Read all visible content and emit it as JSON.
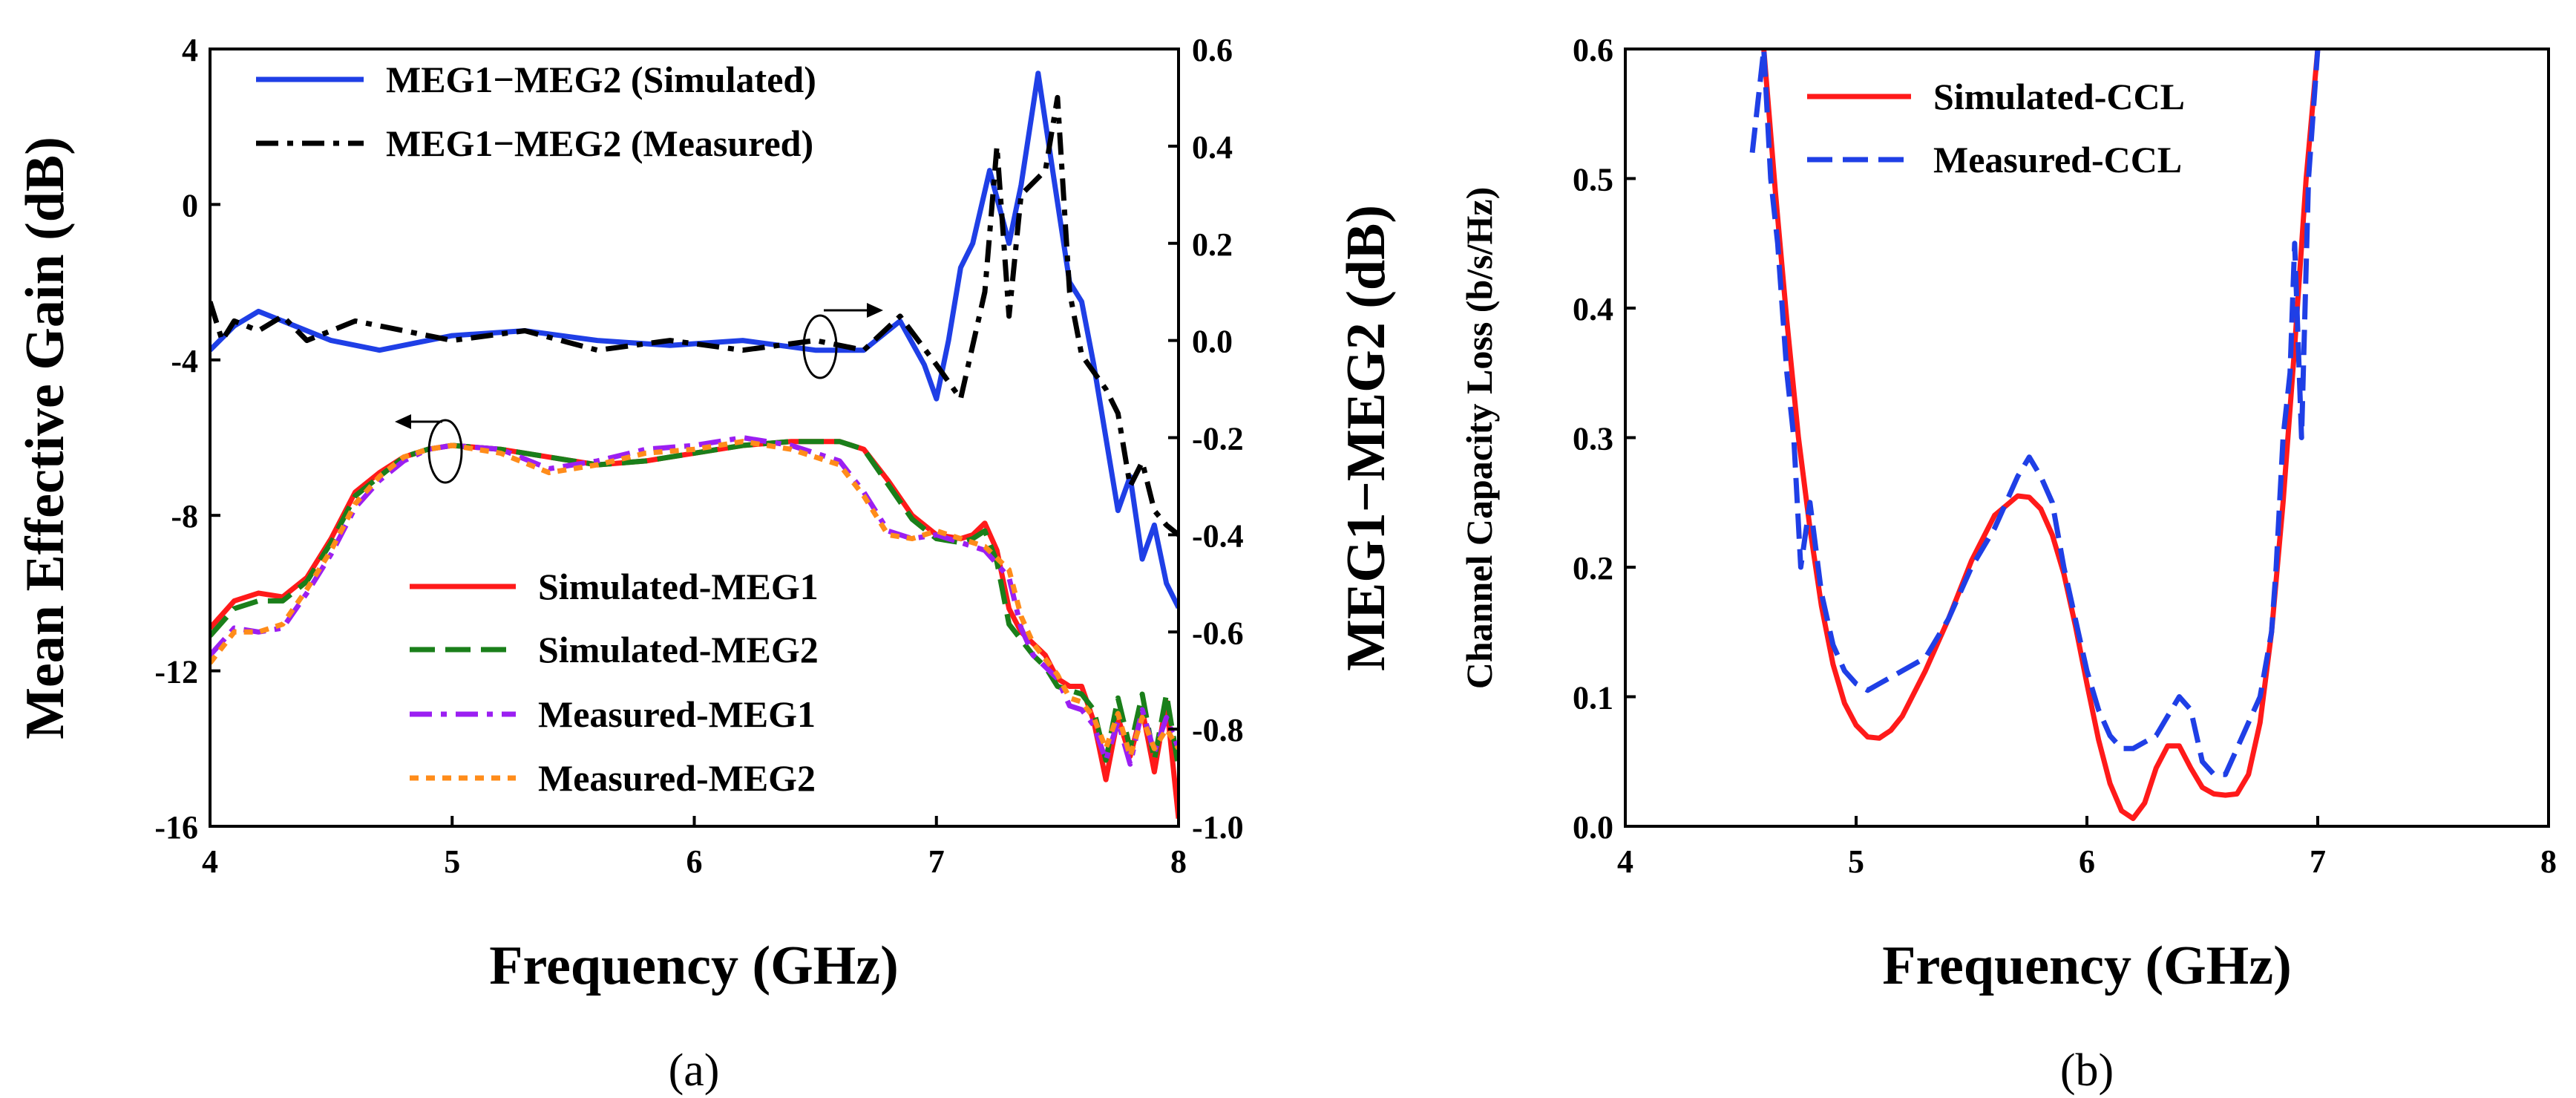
{
  "chart_data": [
    {
      "type": "line",
      "caption": "(a)",
      "xlabel": "Frequency (GHz)",
      "ylabel": "Mean Effective Gain (dB)",
      "y2label": "MEG1−MEG2 (dB)",
      "xlim": [
        4,
        8
      ],
      "ylim": [
        -16,
        4
      ],
      "y2lim": [
        -1.0,
        0.6
      ],
      "x_ticks": [
        "4",
        "5",
        "6",
        "7",
        "8"
      ],
      "y_ticks": [
        "-16",
        "-12",
        "-8",
        "-4",
        "0",
        "4"
      ],
      "y2_ticks": [
        "-1.0",
        "-0.8",
        "-0.6",
        "-0.4",
        "-0.2",
        "0.0",
        "0.2",
        "0.4",
        "0.6"
      ],
      "series": [
        {
          "name": "MEG1−MEG2 (Simulated)",
          "axis": "right",
          "color": "#1f3fe6",
          "dash": "solid",
          "x": [
            4.0,
            4.1,
            4.2,
            4.3,
            4.5,
            4.7,
            5.0,
            5.3,
            5.6,
            5.9,
            6.2,
            6.5,
            6.7,
            6.85,
            6.95,
            7.0,
            7.05,
            7.1,
            7.15,
            7.22,
            7.3,
            7.35,
            7.42,
            7.48,
            7.55,
            7.6,
            7.65,
            7.7,
            7.75,
            7.8,
            7.85,
            7.9,
            7.95,
            8.0
          ],
          "values": [
            -0.02,
            0.03,
            0.06,
            0.04,
            0.0,
            -0.02,
            0.01,
            0.02,
            0.0,
            -0.01,
            0.0,
            -0.02,
            -0.02,
            0.04,
            -0.05,
            -0.12,
            0.0,
            0.15,
            0.2,
            0.35,
            0.2,
            0.32,
            0.55,
            0.35,
            0.12,
            0.08,
            -0.05,
            -0.2,
            -0.35,
            -0.28,
            -0.45,
            -0.38,
            -0.5,
            -0.55
          ]
        },
        {
          "name": "MEG1−MEG2 (Measured)",
          "axis": "right",
          "color": "#000000",
          "dash": "dashdot",
          "x": [
            4.0,
            4.05,
            4.1,
            4.2,
            4.3,
            4.4,
            4.6,
            4.8,
            5.0,
            5.3,
            5.6,
            5.9,
            6.2,
            6.5,
            6.7,
            6.85,
            7.0,
            7.1,
            7.2,
            7.25,
            7.3,
            7.35,
            7.45,
            7.5,
            7.55,
            7.6,
            7.7,
            7.75,
            7.8,
            7.85,
            7.9,
            7.95,
            8.0
          ],
          "values": [
            0.08,
            0.0,
            0.04,
            0.02,
            0.05,
            0.0,
            0.04,
            0.02,
            0.0,
            0.02,
            -0.02,
            0.0,
            -0.02,
            0.0,
            -0.02,
            0.05,
            -0.05,
            -0.12,
            0.1,
            0.4,
            0.05,
            0.3,
            0.35,
            0.5,
            0.1,
            -0.03,
            -0.1,
            -0.15,
            -0.3,
            -0.25,
            -0.35,
            -0.38,
            -0.4
          ]
        },
        {
          "name": "Simulated-MEG1",
          "axis": "left",
          "color": "#ff1a1a",
          "dash": "solid",
          "x": [
            4.0,
            4.1,
            4.2,
            4.3,
            4.4,
            4.5,
            4.6,
            4.7,
            4.8,
            4.9,
            5.0,
            5.2,
            5.4,
            5.6,
            5.8,
            6.0,
            6.2,
            6.4,
            6.6,
            6.7,
            6.8,
            6.9,
            7.0,
            7.1,
            7.15,
            7.2,
            7.25,
            7.3,
            7.35,
            7.4,
            7.45,
            7.5,
            7.55,
            7.6,
            7.65,
            7.7,
            7.75,
            7.8,
            7.85,
            7.9,
            7.95,
            8.0
          ],
          "values": [
            -10.9,
            -10.2,
            -10.0,
            -10.1,
            -9.6,
            -8.6,
            -7.4,
            -6.9,
            -6.5,
            -6.3,
            -6.2,
            -6.3,
            -6.5,
            -6.7,
            -6.6,
            -6.4,
            -6.2,
            -6.1,
            -6.1,
            -6.3,
            -7.1,
            -8.0,
            -8.5,
            -8.6,
            -8.5,
            -8.2,
            -8.9,
            -10.4,
            -11.0,
            -11.3,
            -11.6,
            -12.2,
            -12.4,
            -12.4,
            -13.3,
            -14.8,
            -13.2,
            -14.2,
            -13.0,
            -14.6,
            -12.8,
            -15.8
          ]
        },
        {
          "name": "Simulated-MEG2",
          "axis": "left",
          "color": "#1a7f1a",
          "dash": "dashed",
          "x": [
            4.0,
            4.1,
            4.2,
            4.3,
            4.4,
            4.5,
            4.6,
            4.7,
            4.8,
            4.9,
            5.0,
            5.2,
            5.4,
            5.6,
            5.8,
            6.0,
            6.2,
            6.4,
            6.6,
            6.7,
            6.8,
            6.9,
            7.0,
            7.1,
            7.15,
            7.2,
            7.25,
            7.3,
            7.35,
            7.4,
            7.45,
            7.5,
            7.55,
            7.6,
            7.65,
            7.7,
            7.75,
            7.8,
            7.85,
            7.9,
            7.95,
            8.0
          ],
          "values": [
            -11.1,
            -10.4,
            -10.2,
            -10.2,
            -9.7,
            -8.7,
            -7.5,
            -7.0,
            -6.5,
            -6.3,
            -6.2,
            -6.3,
            -6.5,
            -6.7,
            -6.6,
            -6.4,
            -6.2,
            -6.1,
            -6.1,
            -6.3,
            -7.2,
            -8.1,
            -8.6,
            -8.7,
            -8.6,
            -8.4,
            -9.2,
            -10.8,
            -11.2,
            -11.6,
            -11.9,
            -12.4,
            -12.5,
            -12.6,
            -13.0,
            -14.3,
            -12.7,
            -14.0,
            -12.6,
            -14.3,
            -12.6,
            -14.5
          ]
        },
        {
          "name": "Measured-MEG1",
          "axis": "left",
          "color": "#9b1ff2",
          "dash": "dashdot",
          "x": [
            4.0,
            4.1,
            4.2,
            4.3,
            4.4,
            4.5,
            4.6,
            4.7,
            4.8,
            4.9,
            5.0,
            5.2,
            5.4,
            5.6,
            5.8,
            6.0,
            6.2,
            6.4,
            6.6,
            6.7,
            6.8,
            6.9,
            7.0,
            7.1,
            7.2,
            7.3,
            7.35,
            7.4,
            7.45,
            7.5,
            7.55,
            7.6,
            7.65,
            7.7,
            7.75,
            7.8,
            7.85,
            7.9,
            7.95,
            8.0
          ],
          "values": [
            -11.6,
            -10.9,
            -11.0,
            -10.9,
            -10.0,
            -9.0,
            -7.8,
            -7.1,
            -6.6,
            -6.3,
            -6.2,
            -6.3,
            -6.8,
            -6.6,
            -6.3,
            -6.2,
            -6.0,
            -6.2,
            -6.6,
            -7.4,
            -8.4,
            -8.6,
            -8.5,
            -8.7,
            -8.9,
            -9.6,
            -10.9,
            -11.6,
            -11.9,
            -12.2,
            -12.9,
            -13.0,
            -13.4,
            -14.3,
            -13.3,
            -14.4,
            -13.0,
            -14.1,
            -13.2,
            -14.0
          ]
        },
        {
          "name": "Measured-MEG2",
          "axis": "left",
          "color": "#ff8c1a",
          "dash": "dotted",
          "x": [
            4.0,
            4.1,
            4.2,
            4.3,
            4.4,
            4.5,
            4.6,
            4.7,
            4.8,
            4.9,
            5.0,
            5.2,
            5.4,
            5.6,
            5.8,
            6.0,
            6.2,
            6.4,
            6.6,
            6.7,
            6.8,
            6.9,
            7.0,
            7.1,
            7.2,
            7.3,
            7.35,
            7.4,
            7.45,
            7.5,
            7.55,
            7.6,
            7.65,
            7.7,
            7.75,
            7.8,
            7.85,
            7.9,
            7.95,
            8.0
          ],
          "values": [
            -11.8,
            -11.0,
            -11.0,
            -10.8,
            -9.9,
            -8.9,
            -7.7,
            -7.0,
            -6.5,
            -6.3,
            -6.2,
            -6.4,
            -6.9,
            -6.7,
            -6.4,
            -6.3,
            -6.1,
            -6.3,
            -6.7,
            -7.5,
            -8.5,
            -8.6,
            -8.4,
            -8.6,
            -8.8,
            -9.4,
            -10.6,
            -11.3,
            -11.7,
            -12.1,
            -12.7,
            -12.8,
            -13.2,
            -14.0,
            -13.1,
            -14.2,
            -13.2,
            -14.0,
            -13.5,
            -14.0
          ]
        }
      ],
      "annotations": [
        {
          "kind": "ellipse-arrow",
          "direction": "right",
          "x": 6.5,
          "y": -3.5
        },
        {
          "kind": "ellipse-arrow",
          "direction": "left",
          "x": 5.0,
          "y": -6.3
        }
      ]
    },
    {
      "type": "line",
      "caption": "(b)",
      "xlabel": "Frequency (GHz)",
      "ylabel": "Channel Capacity Loss (b/s/Hz)",
      "xlim": [
        4,
        8
      ],
      "ylim": [
        0.0,
        0.6
      ],
      "x_ticks": [
        "4",
        "5",
        "6",
        "7",
        "8"
      ],
      "y_ticks": [
        "0.0",
        "0.1",
        "0.2",
        "0.3",
        "0.4",
        "0.5",
        "0.6"
      ],
      "series": [
        {
          "name": "Simulated-CCL",
          "color": "#ff1a1a",
          "dash": "solid",
          "x": [
            4.6,
            4.65,
            4.7,
            4.75,
            4.8,
            4.85,
            4.9,
            4.95,
            5.0,
            5.05,
            5.1,
            5.15,
            5.2,
            5.3,
            5.4,
            5.5,
            5.6,
            5.7,
            5.75,
            5.8,
            5.85,
            5.9,
            5.95,
            6.0,
            6.05,
            6.1,
            6.15,
            6.2,
            6.25,
            6.3,
            6.35,
            6.4,
            6.45,
            6.5,
            6.55,
            6.6,
            6.65,
            6.7,
            6.75,
            6.8,
            6.85,
            6.9,
            6.95,
            7.0
          ],
          "values": [
            0.6,
            0.49,
            0.39,
            0.3,
            0.23,
            0.17,
            0.125,
            0.095,
            0.078,
            0.069,
            0.068,
            0.074,
            0.085,
            0.12,
            0.16,
            0.205,
            0.24,
            0.255,
            0.254,
            0.245,
            0.225,
            0.195,
            0.155,
            0.11,
            0.067,
            0.033,
            0.012,
            0.006,
            0.018,
            0.045,
            0.062,
            0.062,
            0.045,
            0.03,
            0.025,
            0.024,
            0.025,
            0.04,
            0.08,
            0.15,
            0.25,
            0.37,
            0.5,
            0.6
          ]
        },
        {
          "name": "Measured-CCL",
          "color": "#1f3fe6",
          "dash": "dashed",
          "x": [
            4.55,
            4.6,
            4.63,
            4.66,
            4.7,
            4.73,
            4.76,
            4.8,
            4.85,
            4.9,
            4.95,
            5.0,
            5.05,
            5.1,
            5.15,
            5.2,
            5.3,
            5.4,
            5.5,
            5.6,
            5.7,
            5.75,
            5.8,
            5.85,
            5.9,
            5.95,
            6.0,
            6.05,
            6.1,
            6.15,
            6.2,
            6.25,
            6.3,
            6.35,
            6.4,
            6.45,
            6.5,
            6.55,
            6.6,
            6.65,
            6.7,
            6.75,
            6.8,
            6.82,
            6.85,
            6.88,
            6.9,
            6.93,
            6.96,
            7.0
          ],
          "values": [
            0.52,
            0.6,
            0.5,
            0.45,
            0.35,
            0.3,
            0.2,
            0.25,
            0.18,
            0.14,
            0.12,
            0.11,
            0.105,
            0.11,
            0.115,
            0.12,
            0.13,
            0.16,
            0.2,
            0.23,
            0.27,
            0.285,
            0.27,
            0.25,
            0.2,
            0.16,
            0.12,
            0.09,
            0.07,
            0.06,
            0.06,
            0.065,
            0.07,
            0.085,
            0.1,
            0.09,
            0.05,
            0.04,
            0.04,
            0.06,
            0.08,
            0.1,
            0.15,
            0.2,
            0.3,
            0.35,
            0.45,
            0.3,
            0.5,
            0.6
          ]
        }
      ]
    }
  ]
}
